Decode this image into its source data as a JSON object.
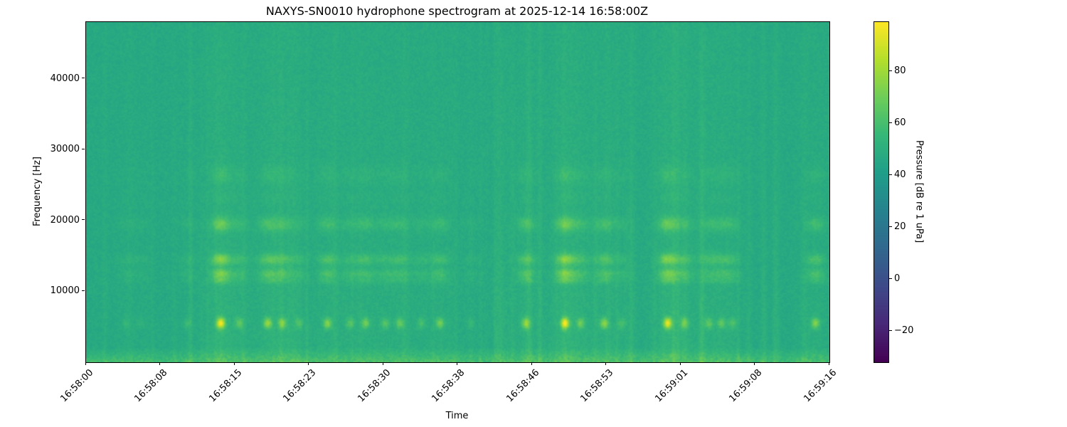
{
  "figure": {
    "background": "#ffffff",
    "text_color": "#000000"
  },
  "chart_data": {
    "type": "heatmap",
    "subtype": "spectrogram",
    "title": "NAXYS-SN0010 hydrophone spectrogram at 2025-12-14 16:58:00Z",
    "xlabel": "Time",
    "ylabel": "Frequency [Hz]",
    "colorbar_label": "Pressure [dB re 1 uPa]",
    "colormap": "viridis",
    "colormap_anchors": [
      "#440154",
      "#482878",
      "#3e4a89",
      "#31688e",
      "#26828e",
      "#1f9e89",
      "#35b779",
      "#6dcd59",
      "#b4de2c",
      "#fde725"
    ],
    "x_ticks": [
      "16:58:00",
      "16:58:08",
      "16:58:15",
      "16:58:23",
      "16:58:30",
      "16:58:38",
      "16:58:46",
      "16:58:53",
      "16:59:01",
      "16:59:08",
      "16:59:16"
    ],
    "duration_s": 76,
    "freq_min_hz": 0,
    "freq_max_hz": 48000,
    "y_ticks": [
      {
        "value": 10000,
        "label": "10000"
      },
      {
        "value": 20000,
        "label": "20000"
      },
      {
        "value": 30000,
        "label": "30000"
      },
      {
        "value": 40000,
        "label": "40000"
      }
    ],
    "colorbar_ticks": [
      {
        "value": 80,
        "label": "80"
      },
      {
        "value": 60,
        "label": "60"
      },
      {
        "value": 40,
        "label": "40"
      },
      {
        "value": 20,
        "label": "20"
      },
      {
        "value": 0,
        "label": "0"
      },
      {
        "value": -20,
        "label": "−20"
      }
    ],
    "vmin_db": -32,
    "vmax_db": 99,
    "background_db": 47,
    "noise_db": 6,
    "low_band": {
      "max_hz": 2200,
      "boost_db": 12
    },
    "event_bands_hz": [
      5600,
      12600,
      14600,
      19600,
      23300,
      26500
    ],
    "events": [
      {
        "t": 4.0,
        "s": 0.15
      },
      {
        "t": 5.5,
        "s": 0.12
      },
      {
        "t": 10.3,
        "s": 0.18
      },
      {
        "t": 13.7,
        "s": 1.0
      },
      {
        "t": 15.6,
        "s": 0.35
      },
      {
        "t": 18.5,
        "s": 0.6
      },
      {
        "t": 20.0,
        "s": 0.5
      },
      {
        "t": 21.7,
        "s": 0.25
      },
      {
        "t": 24.6,
        "s": 0.55
      },
      {
        "t": 26.9,
        "s": 0.3
      },
      {
        "t": 28.5,
        "s": 0.45
      },
      {
        "t": 30.5,
        "s": 0.3
      },
      {
        "t": 32.0,
        "s": 0.4
      },
      {
        "t": 34.2,
        "s": 0.25
      },
      {
        "t": 36.1,
        "s": 0.45
      },
      {
        "t": 39.3,
        "s": 0.15
      },
      {
        "t": 44.9,
        "s": 0.6
      },
      {
        "t": 48.9,
        "s": 1.0
      },
      {
        "t": 50.5,
        "s": 0.4
      },
      {
        "t": 52.9,
        "s": 0.55
      },
      {
        "t": 54.7,
        "s": 0.25
      },
      {
        "t": 59.4,
        "s": 0.95
      },
      {
        "t": 61.1,
        "s": 0.45
      },
      {
        "t": 63.6,
        "s": 0.35
      },
      {
        "t": 64.9,
        "s": 0.35
      },
      {
        "t": 66.0,
        "s": 0.3
      },
      {
        "t": 74.5,
        "s": 0.55
      }
    ],
    "faint_streaks": {
      "count": 90,
      "seed": 7,
      "max_boost_db": 6
    }
  }
}
